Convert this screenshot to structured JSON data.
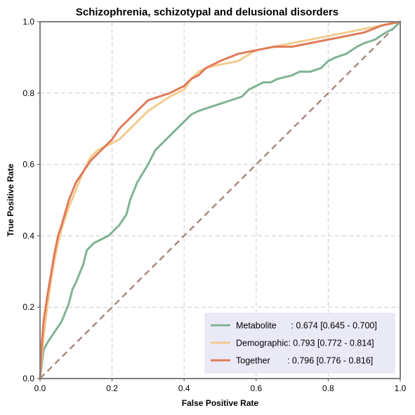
{
  "chart_data": {
    "type": "line",
    "title": "Schizophrenia, schizotypal and delusional disorders",
    "xlabel": "False Positive Rate",
    "ylabel": "True Positive Rate",
    "xlim": [
      0,
      1
    ],
    "ylim": [
      0,
      1
    ],
    "xticks": [
      "0.0",
      "0.2",
      "0.4",
      "0.6",
      "0.8",
      "1.0"
    ],
    "yticks": [
      "0.0",
      "0.2",
      "0.4",
      "0.6",
      "0.8",
      "1.0"
    ],
    "grid": true,
    "legend_position": "lower-right",
    "diagonal": {
      "color": "#a88a80",
      "x": [
        0,
        1
      ],
      "y": [
        0,
        1
      ]
    },
    "series": [
      {
        "name": "Metabolite",
        "legend_text": "Metabolite      : 0.674 [0.645 - 0.700]",
        "color": "#7fb394",
        "x": [
          0,
          0.01,
          0.02,
          0.04,
          0.06,
          0.08,
          0.09,
          0.1,
          0.12,
          0.13,
          0.14,
          0.15,
          0.17,
          0.19,
          0.2,
          0.22,
          0.24,
          0.25,
          0.27,
          0.3,
          0.32,
          0.35,
          0.38,
          0.4,
          0.42,
          0.44,
          0.47,
          0.5,
          0.53,
          0.56,
          0.58,
          0.6,
          0.62,
          0.64,
          0.66,
          0.7,
          0.72,
          0.75,
          0.78,
          0.8,
          0.82,
          0.85,
          0.88,
          0.9,
          0.93,
          0.96,
          0.98,
          1.0
        ],
        "y": [
          0,
          0.08,
          0.1,
          0.13,
          0.16,
          0.21,
          0.25,
          0.27,
          0.32,
          0.36,
          0.37,
          0.38,
          0.39,
          0.4,
          0.41,
          0.43,
          0.46,
          0.5,
          0.55,
          0.6,
          0.64,
          0.67,
          0.7,
          0.72,
          0.74,
          0.75,
          0.76,
          0.77,
          0.78,
          0.79,
          0.81,
          0.82,
          0.83,
          0.83,
          0.84,
          0.85,
          0.86,
          0.86,
          0.87,
          0.89,
          0.9,
          0.91,
          0.93,
          0.94,
          0.95,
          0.97,
          0.98,
          1.0
        ]
      },
      {
        "name": "Demographic",
        "legend_text": "Demographic: 0.793 [0.772 - 0.814]",
        "color": "#f2cc8f",
        "x": [
          0,
          0.01,
          0.02,
          0.03,
          0.04,
          0.05,
          0.06,
          0.08,
          0.1,
          0.12,
          0.14,
          0.16,
          0.18,
          0.2,
          0.22,
          0.24,
          0.26,
          0.28,
          0.3,
          0.33,
          0.36,
          0.38,
          0.4,
          0.42,
          0.44,
          0.46,
          0.5,
          0.55,
          0.6,
          0.65,
          0.7,
          0.75,
          0.8,
          0.85,
          0.9,
          0.95,
          1.0
        ],
        "y": [
          0,
          0.12,
          0.2,
          0.27,
          0.33,
          0.38,
          0.42,
          0.48,
          0.53,
          0.58,
          0.62,
          0.64,
          0.65,
          0.66,
          0.67,
          0.69,
          0.71,
          0.73,
          0.75,
          0.77,
          0.79,
          0.8,
          0.81,
          0.84,
          0.86,
          0.87,
          0.88,
          0.89,
          0.92,
          0.93,
          0.94,
          0.95,
          0.96,
          0.97,
          0.98,
          0.99,
          1.0
        ]
      },
      {
        "name": "Together",
        "legend_text": "Together       : 0.796 [0.776 - 0.816]",
        "color": "#e07b5a",
        "x": [
          0,
          0.005,
          0.01,
          0.02,
          0.03,
          0.04,
          0.05,
          0.06,
          0.08,
          0.1,
          0.12,
          0.14,
          0.16,
          0.18,
          0.2,
          0.22,
          0.24,
          0.26,
          0.28,
          0.3,
          0.33,
          0.36,
          0.38,
          0.4,
          0.42,
          0.44,
          0.46,
          0.5,
          0.55,
          0.6,
          0.65,
          0.7,
          0.75,
          0.8,
          0.85,
          0.9,
          0.95,
          1.0
        ],
        "y": [
          0,
          0.1,
          0.16,
          0.23,
          0.29,
          0.35,
          0.4,
          0.43,
          0.5,
          0.55,
          0.58,
          0.61,
          0.63,
          0.65,
          0.67,
          0.7,
          0.72,
          0.74,
          0.76,
          0.78,
          0.79,
          0.8,
          0.81,
          0.82,
          0.84,
          0.85,
          0.87,
          0.89,
          0.91,
          0.92,
          0.93,
          0.93,
          0.94,
          0.95,
          0.96,
          0.97,
          0.99,
          1.0
        ]
      }
    ]
  }
}
